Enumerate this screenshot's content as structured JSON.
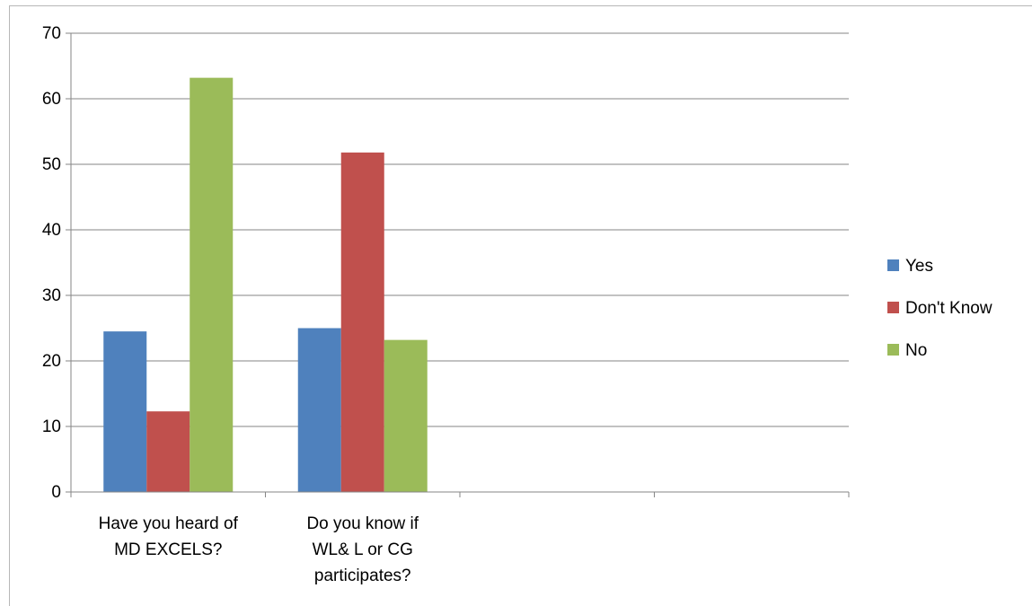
{
  "chart_data": {
    "type": "bar",
    "categories": [
      [
        "Have you heard of",
        "MD EXCELS?"
      ],
      [
        "Do you know if",
        "WL& L or CG",
        "participates?"
      ],
      [],
      []
    ],
    "series": [
      {
        "name": "Yes",
        "values": [
          24.5,
          25,
          null,
          null
        ],
        "color": "#4f81bd"
      },
      {
        "name": "Don't Know",
        "values": [
          12.3,
          51.8,
          null,
          null
        ],
        "color": "#c0504d"
      },
      {
        "name": "No",
        "values": [
          63.2,
          23.2,
          null,
          null
        ],
        "color": "#9bbb59"
      }
    ],
    "ylim": [
      0,
      70
    ],
    "yticks": [
      0,
      10,
      20,
      30,
      40,
      50,
      60,
      70
    ],
    "grid": true,
    "legend_position": "right"
  }
}
